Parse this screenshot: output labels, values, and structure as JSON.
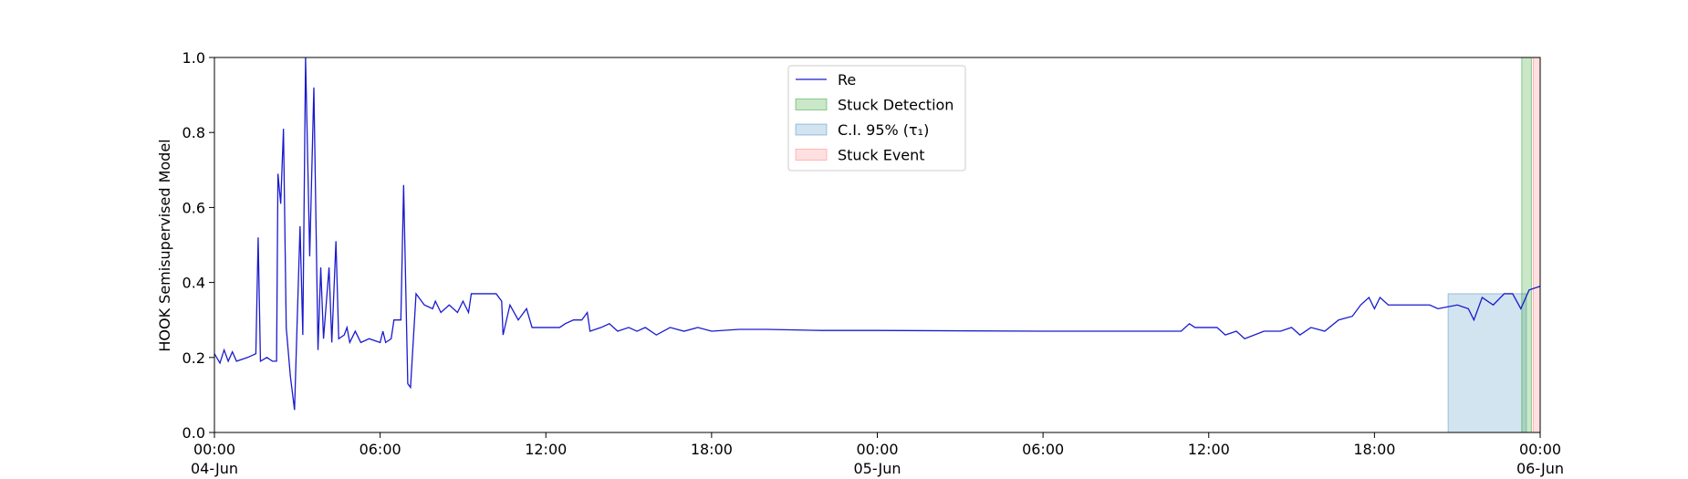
{
  "chart_data": {
    "type": "line",
    "ylabel": "HOOK Semisupervised Model",
    "ylim": [
      0,
      1
    ],
    "yticks": [
      {
        "value": 0,
        "label": "0.0"
      },
      0.2,
      0.4,
      0.6,
      0.8,
      {
        "value": 1,
        "label": "1.0"
      }
    ],
    "xlim": [
      "1900-06-04T00:00",
      "1900-06-06T00:00"
    ],
    "xticks": [
      {
        "value": "1900-06-04T00:00",
        "label": "00:00\n04-Jun\n1900"
      },
      {
        "value": "1900-06-04T06:00",
        "label": "06:00"
      },
      {
        "value": "1900-06-04T12:00",
        "label": "12:00"
      },
      {
        "value": "1900-06-04T18:00",
        "label": "18:00"
      },
      {
        "value": "1900-06-05T00:00",
        "label": "00:00\n05-Jun"
      },
      {
        "value": "1900-06-05T06:00",
        "label": "06:00"
      },
      {
        "value": "1900-06-05T12:00",
        "label": "12:00"
      },
      {
        "value": "1900-06-05T18:00",
        "label": "18:00"
      },
      {
        "value": "1900-06-06T00:00",
        "label": "00:00\n06-Jun"
      }
    ],
    "series": [
      {
        "name": "Re",
        "color": "#1a1acd",
        "x": [
          "1900-06-04T00:00",
          "1900-06-04T00:12",
          "1900-06-04T00:21",
          "1900-06-04T00:30",
          "1900-06-04T00:39",
          "1900-06-04T00:48",
          "1900-06-04T01:12",
          "1900-06-04T01:30",
          "1900-06-04T01:35",
          "1900-06-04T01:40",
          "1900-06-04T01:54",
          "1900-06-04T02:06",
          "1900-06-04T02:15",
          "1900-06-04T02:18",
          "1900-06-04T02:24",
          "1900-06-04T02:30",
          "1900-06-04T02:36",
          "1900-06-04T02:45",
          "1900-06-04T02:54",
          "1900-06-04T03:06",
          "1900-06-04T03:12",
          "1900-06-04T03:18",
          "1900-06-04T03:27",
          "1900-06-04T03:36",
          "1900-06-04T03:45",
          "1900-06-04T03:51",
          "1900-06-04T03:57",
          "1900-06-04T04:09",
          "1900-06-04T04:15",
          "1900-06-04T04:24",
          "1900-06-04T04:30",
          "1900-06-04T04:42",
          "1900-06-04T04:48",
          "1900-06-04T04:54",
          "1900-06-04T05:06",
          "1900-06-04T05:18",
          "1900-06-04T05:36",
          "1900-06-04T06:00",
          "1900-06-04T06:06",
          "1900-06-04T06:12",
          "1900-06-04T06:24",
          "1900-06-04T06:30",
          "1900-06-04T06:45",
          "1900-06-04T06:51",
          "1900-06-04T07:00",
          "1900-06-04T07:06",
          "1900-06-04T07:18",
          "1900-06-04T07:36",
          "1900-06-04T07:54",
          "1900-06-04T08:00",
          "1900-06-04T08:12",
          "1900-06-04T08:30",
          "1900-06-04T08:48",
          "1900-06-04T09:00",
          "1900-06-04T09:12",
          "1900-06-04T09:18",
          "1900-06-04T09:48",
          "1900-06-04T10:12",
          "1900-06-04T10:24",
          "1900-06-04T10:27",
          "1900-06-04T10:42",
          "1900-06-04T11:00",
          "1900-06-04T11:18",
          "1900-06-04T11:30",
          "1900-06-04T12:30",
          "1900-06-04T12:42",
          "1900-06-04T13:00",
          "1900-06-04T13:18",
          "1900-06-04T13:30",
          "1900-06-04T13:36",
          "1900-06-04T14:00",
          "1900-06-04T14:18",
          "1900-06-04T14:36",
          "1900-06-04T15:00",
          "1900-06-04T15:18",
          "1900-06-04T15:36",
          "1900-06-04T16:00",
          "1900-06-04T16:30",
          "1900-06-04T17:00",
          "1900-06-04T17:30",
          "1900-06-04T18:00",
          "1900-06-04T19:00",
          "1900-06-04T20:00",
          "1900-06-04T22:00",
          "1900-06-05T00:00",
          "1900-06-05T06:00",
          "1900-06-05T11:00",
          "1900-06-05T11:18",
          "1900-06-05T11:30",
          "1900-06-05T12:18",
          "1900-06-05T12:36",
          "1900-06-05T13:00",
          "1900-06-05T13:18",
          "1900-06-05T14:00",
          "1900-06-05T14:36",
          "1900-06-05T15:00",
          "1900-06-05T15:18",
          "1900-06-05T15:42",
          "1900-06-05T16:12",
          "1900-06-05T16:42",
          "1900-06-05T17:12",
          "1900-06-05T17:30",
          "1900-06-05T17:48",
          "1900-06-05T18:00",
          "1900-06-05T18:12",
          "1900-06-05T18:30",
          "1900-06-05T19:00",
          "1900-06-05T20:00",
          "1900-06-05T20:18",
          "1900-06-05T21:00",
          "1900-06-05T21:24",
          "1900-06-05T21:36",
          "1900-06-05T21:54",
          "1900-06-05T22:18",
          "1900-06-05T22:42",
          "1900-06-05T23:00",
          "1900-06-05T23:18",
          "1900-06-05T23:36",
          "1900-06-06T00:00"
        ],
        "values": [
          0.21,
          0.185,
          0.22,
          0.19,
          0.215,
          0.19,
          0.2,
          0.21,
          0.52,
          0.19,
          0.2,
          0.19,
          0.19,
          0.69,
          0.61,
          0.81,
          0.28,
          0.15,
          0.06,
          0.55,
          0.26,
          1.0,
          0.47,
          0.92,
          0.22,
          0.44,
          0.25,
          0.44,
          0.24,
          0.51,
          0.25,
          0.26,
          0.28,
          0.24,
          0.27,
          0.24,
          0.25,
          0.24,
          0.27,
          0.24,
          0.25,
          0.3,
          0.3,
          0.66,
          0.13,
          0.12,
          0.37,
          0.34,
          0.33,
          0.35,
          0.32,
          0.34,
          0.32,
          0.35,
          0.32,
          0.37,
          0.37,
          0.37,
          0.35,
          0.26,
          0.34,
          0.3,
          0.33,
          0.28,
          0.28,
          0.29,
          0.3,
          0.3,
          0.32,
          0.27,
          0.28,
          0.29,
          0.27,
          0.28,
          0.27,
          0.28,
          0.26,
          0.28,
          0.27,
          0.28,
          0.27,
          0.275,
          0.275,
          0.272,
          0.272,
          0.27,
          0.27,
          0.29,
          0.28,
          0.28,
          0.26,
          0.27,
          0.25,
          0.27,
          0.27,
          0.28,
          0.26,
          0.28,
          0.27,
          0.3,
          0.31,
          0.34,
          0.36,
          0.33,
          0.36,
          0.34,
          0.34,
          0.34,
          0.33,
          0.34,
          0.33,
          0.3,
          0.36,
          0.34,
          0.37,
          0.37,
          0.33,
          0.38,
          0.39
        ]
      }
    ],
    "spans": [
      {
        "name": "Stuck Detection",
        "color": "#2ca02c",
        "opacity": 0.25,
        "x": [
          "1900-06-05T23:20",
          "1900-06-05T23:41"
        ]
      },
      {
        "name": "C.I. 95% (τ₁)",
        "color": "#1f77b4",
        "opacity": 0.2,
        "x": [
          "1900-06-05T20:40",
          "1900-06-05T23:30"
        ],
        "y": [
          0,
          0.37
        ]
      },
      {
        "name": "Stuck Event",
        "color": "#ff0000",
        "opacity": 0.12,
        "x": [
          "1900-06-05T23:45",
          "1900-06-06T00:00"
        ]
      }
    ]
  }
}
